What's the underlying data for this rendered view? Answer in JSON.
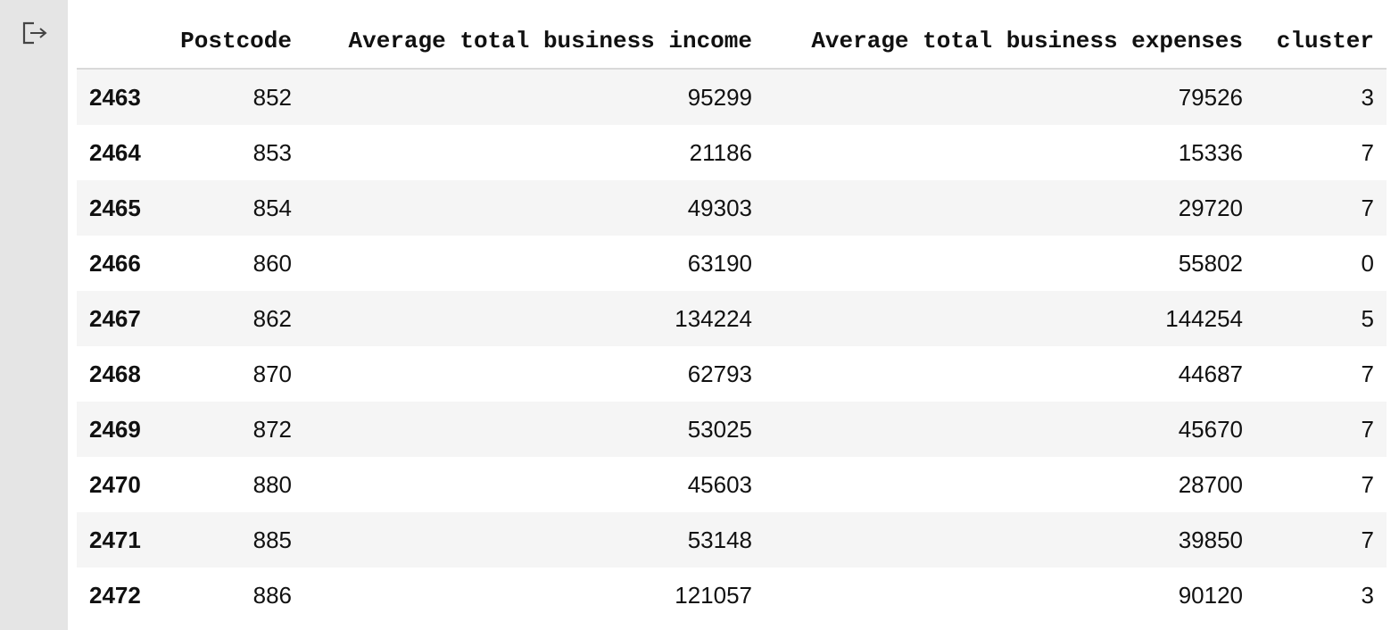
{
  "output": {
    "icon": "output-exit-icon"
  },
  "table": {
    "columns": [
      "",
      "Postcode",
      "Average total business income",
      "Average total business expenses",
      "cluster"
    ],
    "rows": [
      {
        "index": "2463",
        "postcode": "852",
        "income": "95299",
        "expenses": "79526",
        "cluster": "3"
      },
      {
        "index": "2464",
        "postcode": "853",
        "income": "21186",
        "expenses": "15336",
        "cluster": "7"
      },
      {
        "index": "2465",
        "postcode": "854",
        "income": "49303",
        "expenses": "29720",
        "cluster": "7"
      },
      {
        "index": "2466",
        "postcode": "860",
        "income": "63190",
        "expenses": "55802",
        "cluster": "0"
      },
      {
        "index": "2467",
        "postcode": "862",
        "income": "134224",
        "expenses": "144254",
        "cluster": "5"
      },
      {
        "index": "2468",
        "postcode": "870",
        "income": "62793",
        "expenses": "44687",
        "cluster": "7"
      },
      {
        "index": "2469",
        "postcode": "872",
        "income": "53025",
        "expenses": "45670",
        "cluster": "7"
      },
      {
        "index": "2470",
        "postcode": "880",
        "income": "45603",
        "expenses": "28700",
        "cluster": "7"
      },
      {
        "index": "2471",
        "postcode": "885",
        "income": "53148",
        "expenses": "39850",
        "cluster": "7"
      },
      {
        "index": "2472",
        "postcode": "886",
        "income": "121057",
        "expenses": "90120",
        "cluster": "3"
      }
    ]
  }
}
